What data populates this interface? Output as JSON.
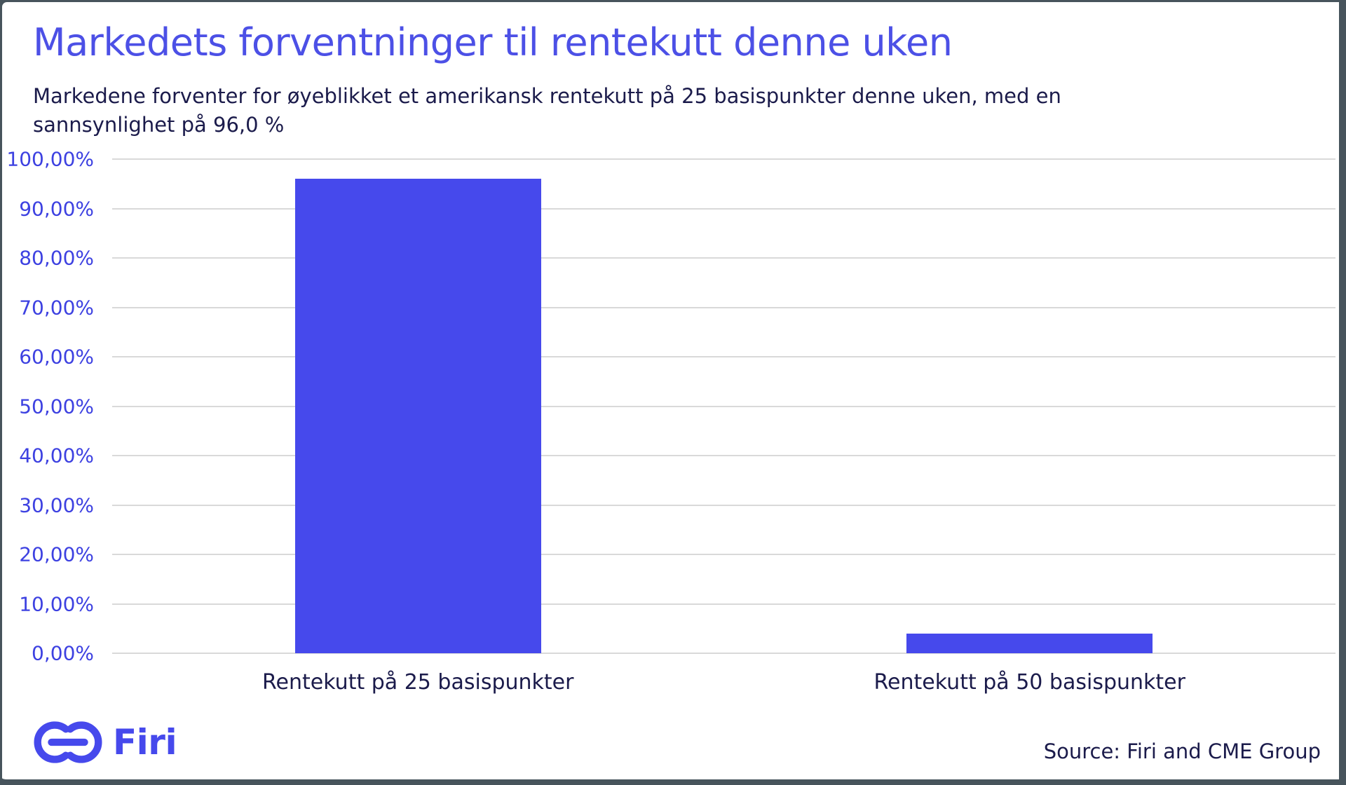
{
  "chart_data": {
    "type": "bar",
    "title": "Markedets forventninger til rentekutt denne uken",
    "subtitle": "Markedene forventer for øyeblikket et amerikansk rentekutt på 25 basispunkter denne uken, med en sannsynlighet på 96,0 %",
    "subtitle_lines": [
      "Markedene forventer for øyeblikket et amerikansk rentekutt på 25 basispunkter denne uken, med en",
      "sannsynlighet på 96,0 %"
    ],
    "categories": [
      "Rentekutt på 25 basispunkter",
      "Rentekutt på 50 basispunkter"
    ],
    "values": [
      96.0,
      4.0
    ],
    "xlabel": "",
    "ylabel": "",
    "ylim": [
      0,
      100
    ],
    "ytick_labels": [
      "100,00%",
      "90,00%",
      "80,00%",
      "70,00%",
      "60,00%",
      "50,00%",
      "40,00%",
      "30,00%",
      "20,00%",
      "10,00%",
      "0,00%"
    ],
    "grid": true,
    "legend_position": "none",
    "bar_color": "#4649ec",
    "tick_label_color": "#3d41e1",
    "grid_color": "#d9d9d9",
    "title_color": "#4c50e6",
    "text_color": "#1b1b4b"
  },
  "footer": {
    "logo_text": "Firi",
    "logo_color": "#4649ec",
    "source": "Source: Firi and CME Group"
  },
  "frame": {
    "border_color": "#47545c",
    "background_color": "#ffffff"
  }
}
